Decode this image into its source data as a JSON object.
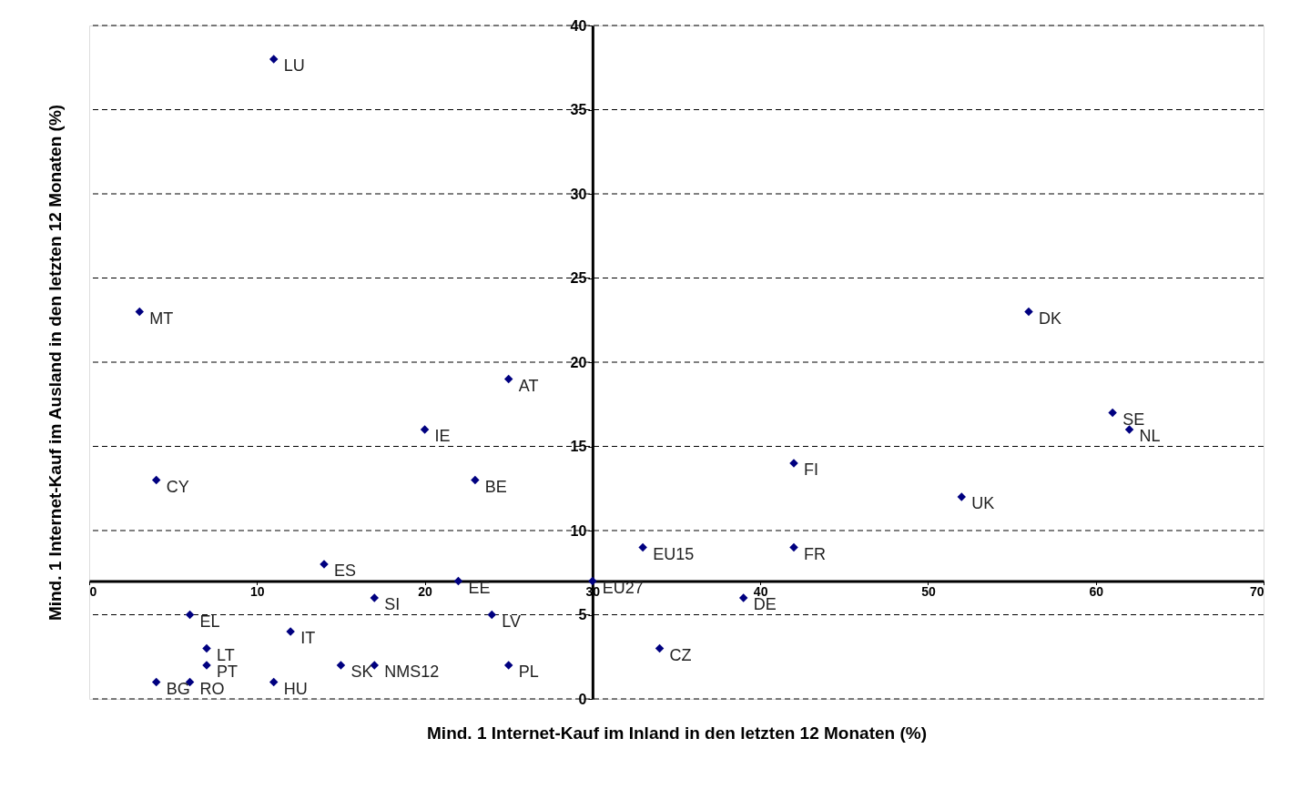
{
  "chart_data": {
    "type": "scatter",
    "xlabel": "Mind. 1 Internet-Kauf im Inland in den letzten 12 Monaten (%)",
    "ylabel": "Mind. 1 Internet-Kauf im Ausland in den letzten 12 Monaten (%)",
    "xlim": [
      0,
      70
    ],
    "ylim": [
      0,
      40
    ],
    "xticks": [
      0,
      10,
      20,
      30,
      40,
      50,
      60,
      70
    ],
    "yticks": [
      0,
      5,
      10,
      15,
      20,
      25,
      30,
      35,
      40
    ],
    "grid": "y",
    "marker": "diamond",
    "series": [
      {
        "color": "#000080",
        "x": [
          11,
          3,
          4,
          6,
          7,
          7,
          4,
          6,
          11,
          15,
          17,
          12,
          14,
          17,
          20,
          23,
          25,
          22,
          24,
          25,
          30,
          33,
          34,
          39,
          42,
          42,
          52,
          56,
          61,
          62
        ],
        "values": [
          38,
          23,
          13,
          5,
          3,
          2,
          1,
          1,
          1,
          2,
          2,
          4,
          8,
          6,
          16,
          13,
          19,
          7,
          5,
          2,
          7,
          9,
          3,
          6,
          14,
          9,
          12,
          23,
          17,
          16
        ]
      }
    ],
    "annotations": [
      {
        "text": "LU",
        "x": 11,
        "y": 38
      },
      {
        "text": "MT",
        "x": 3,
        "y": 23
      },
      {
        "text": "CY",
        "x": 4,
        "y": 13
      },
      {
        "text": "EL",
        "x": 6,
        "y": 5
      },
      {
        "text": "LT",
        "x": 7,
        "y": 3
      },
      {
        "text": "PT",
        "x": 7,
        "y": 2
      },
      {
        "text": "BG",
        "x": 4,
        "y": 1
      },
      {
        "text": "RO",
        "x": 6,
        "y": 1
      },
      {
        "text": "HU",
        "x": 11,
        "y": 1
      },
      {
        "text": "SK",
        "x": 15,
        "y": 2
      },
      {
        "text": "NMS12",
        "x": 17,
        "y": 2
      },
      {
        "text": "IT",
        "x": 12,
        "y": 4
      },
      {
        "text": "ES",
        "x": 14,
        "y": 8
      },
      {
        "text": "SI",
        "x": 17,
        "y": 6
      },
      {
        "text": "IE",
        "x": 20,
        "y": 16
      },
      {
        "text": "BE",
        "x": 23,
        "y": 13
      },
      {
        "text": "AT",
        "x": 25,
        "y": 19
      },
      {
        "text": "EE",
        "x": 22,
        "y": 7
      },
      {
        "text": "LV",
        "x": 24,
        "y": 5
      },
      {
        "text": "PL",
        "x": 25,
        "y": 2
      },
      {
        "text": "EU27",
        "x": 30,
        "y": 7
      },
      {
        "text": "EU15",
        "x": 33,
        "y": 9
      },
      {
        "text": "CZ",
        "x": 34,
        "y": 3
      },
      {
        "text": "DE",
        "x": 39,
        "y": 6
      },
      {
        "text": "FI",
        "x": 42,
        "y": 14
      },
      {
        "text": "FR",
        "x": 42,
        "y": 9
      },
      {
        "text": "UK",
        "x": 52,
        "y": 12
      },
      {
        "text": "DK",
        "x": 56,
        "y": 23
      },
      {
        "text": "SE",
        "x": 61,
        "y": 17
      },
      {
        "text": "NL",
        "x": 62,
        "y": 16
      }
    ]
  }
}
